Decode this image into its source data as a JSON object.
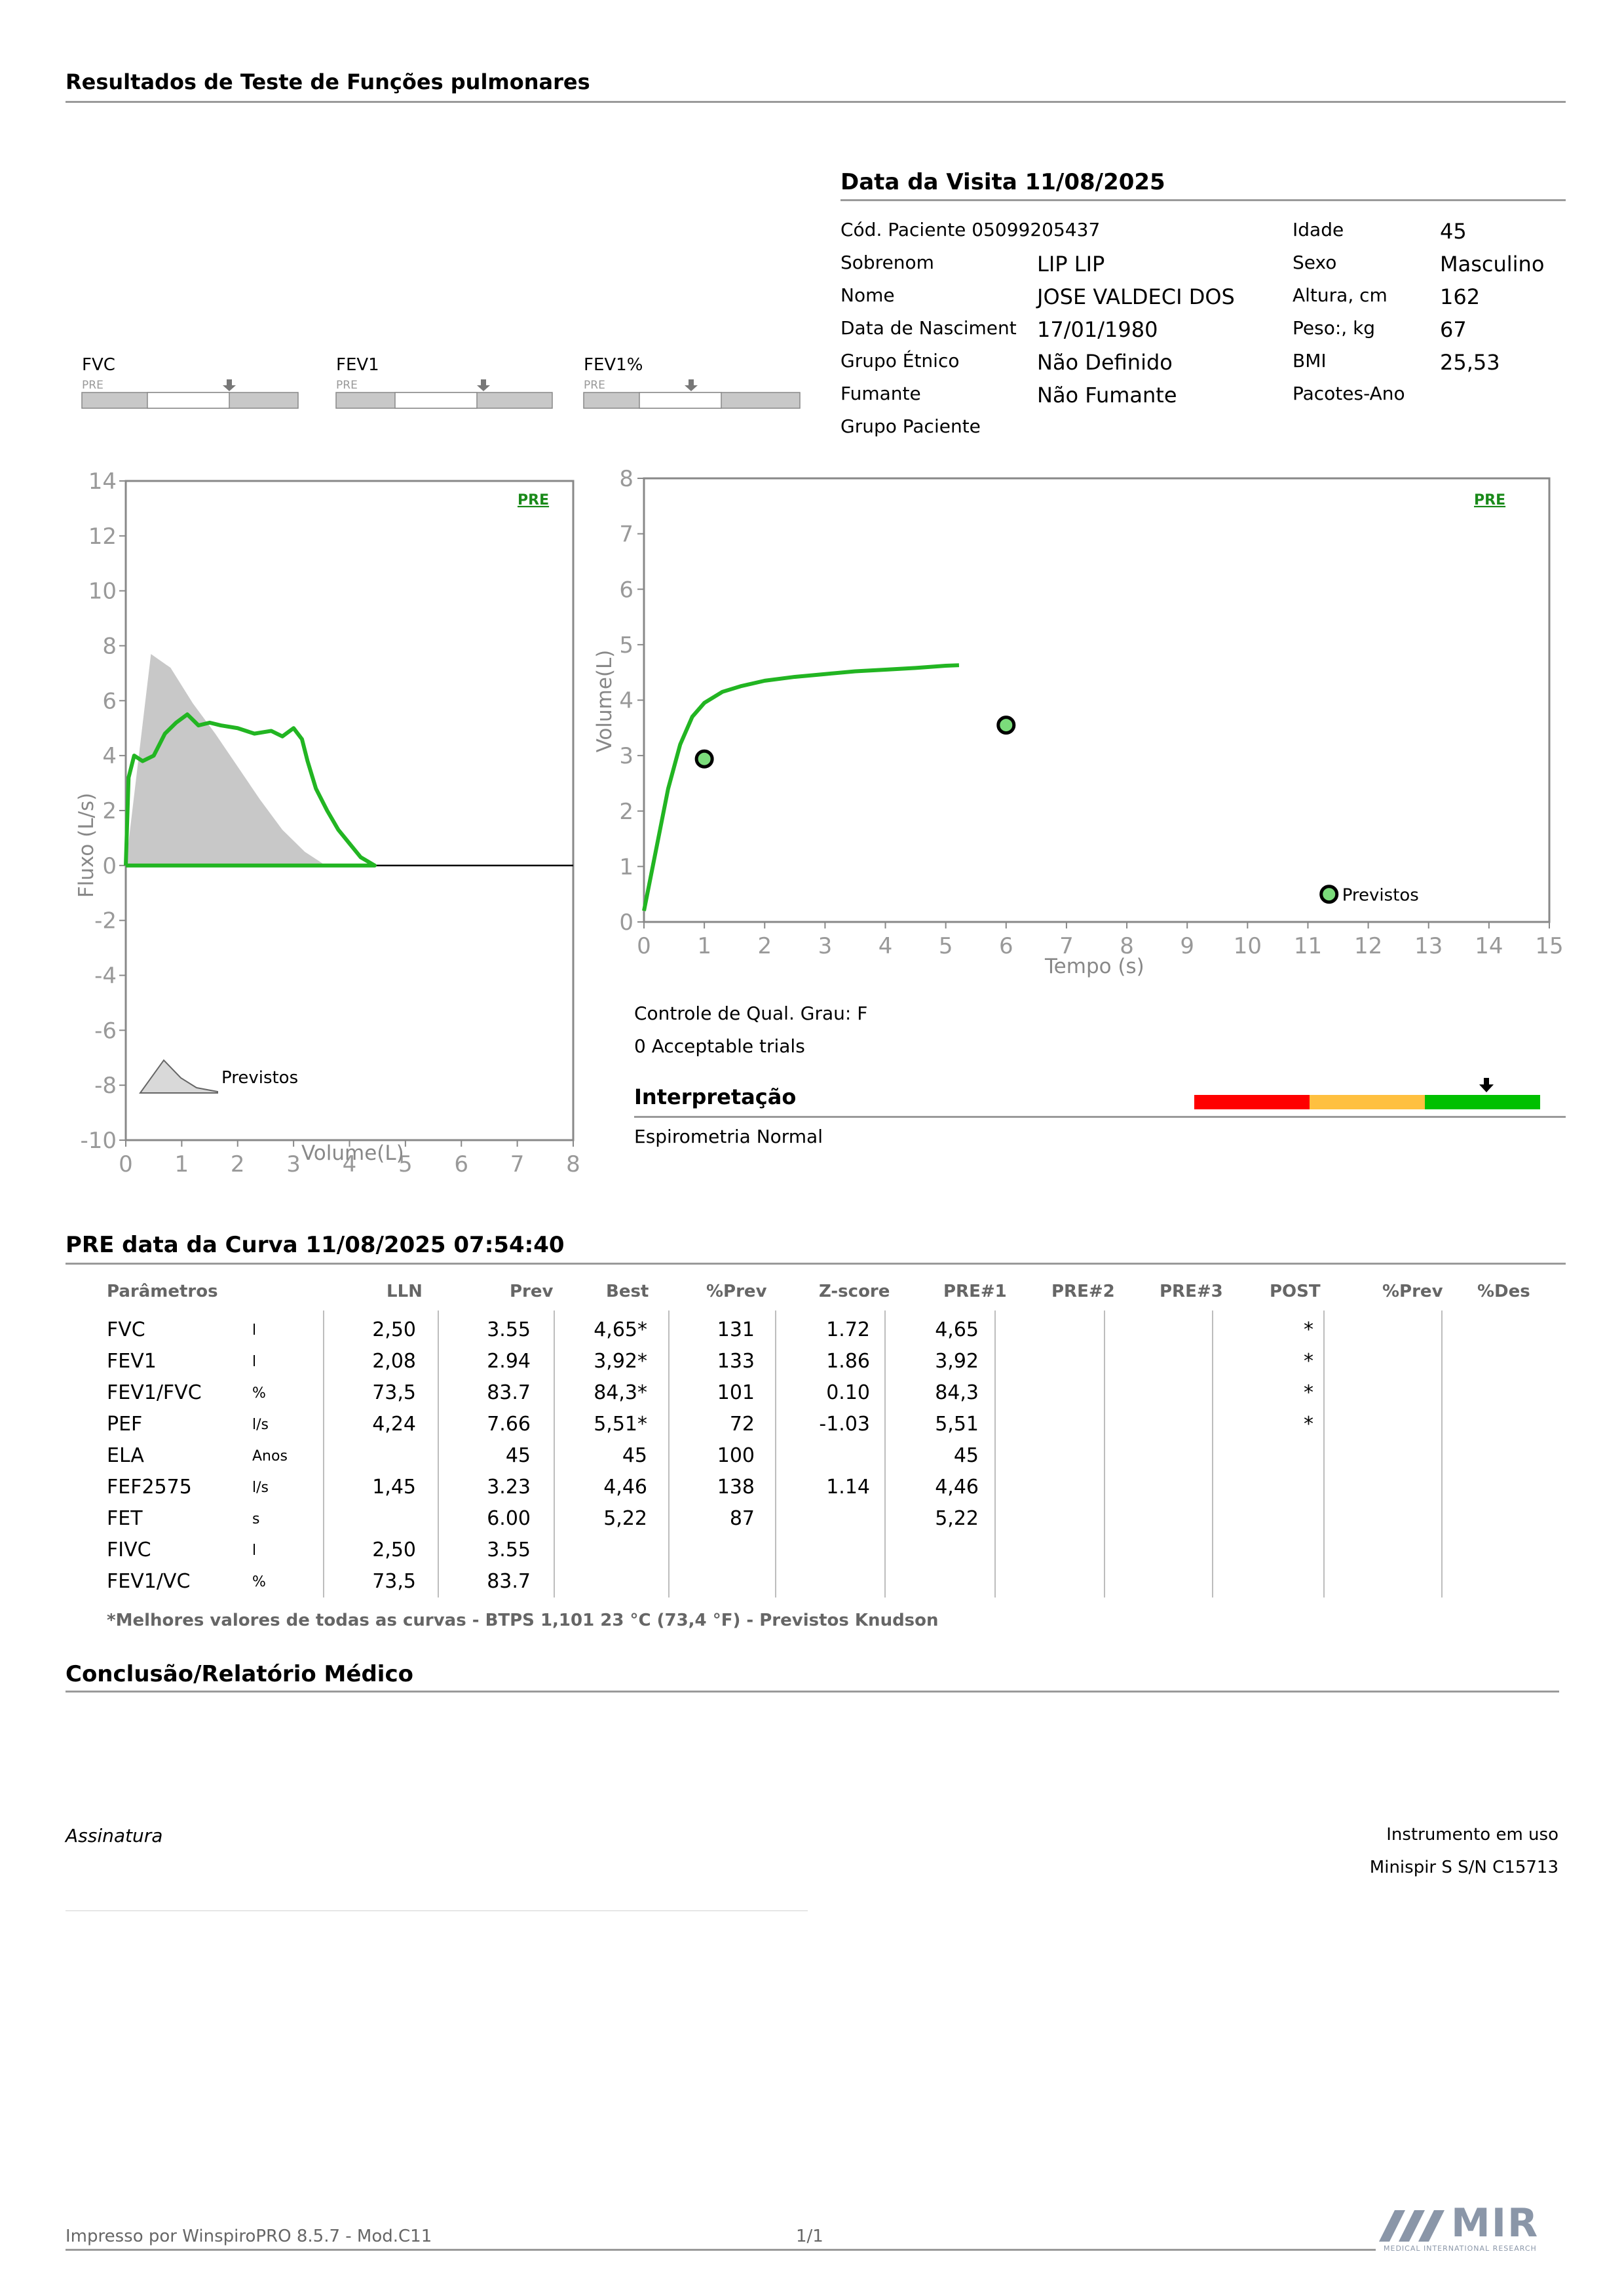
{
  "report": {
    "title": "Resultados de Teste de Funções pulmonares",
    "visit_title": "Data da Visita 11/08/2025"
  },
  "patient": {
    "code_label": "Cód. Paciente 05099205437",
    "surname_label": "Sobrenom",
    "surname": "LIP LIP",
    "name_label": "Nome",
    "name": "JOSE VALDECI DOS",
    "dob_label": "Data de Nasciment",
    "dob": "17/01/1980",
    "ethnic_label": "Grupo Étnico",
    "ethnic": "Não Definido",
    "smoker_label": "Fumante",
    "smoker": "Não Fumante",
    "group_label": "Grupo Paciente",
    "age_label": "Idade",
    "age": "45",
    "sex_label": "Sexo",
    "sex": "Masculino",
    "height_label": "Altura, cm",
    "height": "162",
    "weight_label": "Peso:, kg",
    "weight": "67",
    "bmi_label": "BMI",
    "bmi": "25,53",
    "pack_label": "Pacotes-Ano"
  },
  "indicators": [
    {
      "label": "FVC",
      "sub": "PRE"
    },
    {
      "label": "FEV1",
      "sub": "PRE"
    },
    {
      "label": "FEV1%",
      "sub": "PRE"
    }
  ],
  "chart_data": [
    {
      "type": "line",
      "name": "flow-volume",
      "tag": "PRE",
      "xlabel": "Volume(L)",
      "ylabel": "Fluxo (L/s)",
      "xlim": [
        0,
        8
      ],
      "ylim": [
        -10,
        14
      ],
      "xticks": [
        "0",
        "1",
        "2",
        "3",
        "4",
        "5",
        "6",
        "7",
        "8"
      ],
      "yticks": [
        "14",
        "12",
        "10",
        "8",
        "6",
        "4",
        "2",
        "0",
        "-2",
        "-4",
        "-6",
        "-8",
        "-10"
      ],
      "predicted_legend": "Previstos",
      "predicted_area": {
        "x": [
          0,
          0.45,
          0.8,
          1.2,
          1.6,
          2.0,
          2.4,
          2.8,
          3.2,
          3.5,
          3.55
        ],
        "y": [
          0,
          7.7,
          7.2,
          5.9,
          4.8,
          3.6,
          2.4,
          1.3,
          0.5,
          0.1,
          0
        ]
      },
      "measured": {
        "x": [
          0,
          0.05,
          0.15,
          0.3,
          0.5,
          0.7,
          0.9,
          1.1,
          1.3,
          1.5,
          1.7,
          2.0,
          2.3,
          2.6,
          2.8,
          3.0,
          3.15,
          3.25,
          3.4,
          3.6,
          3.8,
          4.0,
          4.2,
          4.45
        ],
        "y": [
          0,
          3.2,
          4.0,
          3.8,
          4.0,
          4.8,
          5.2,
          5.5,
          5.1,
          5.2,
          5.1,
          5.0,
          4.8,
          4.9,
          4.7,
          5.0,
          4.6,
          3.8,
          2.8,
          2.0,
          1.3,
          0.8,
          0.3,
          0
        ]
      }
    },
    {
      "type": "line",
      "name": "volume-time",
      "tag": "PRE",
      "xlabel": "Tempo (s)",
      "ylabel": "Volume(L)",
      "xlim": [
        0,
        15
      ],
      "ylim": [
        0,
        8
      ],
      "xticks": [
        "0",
        "1",
        "2",
        "3",
        "4",
        "5",
        "6",
        "7",
        "8",
        "9",
        "10",
        "11",
        "12",
        "13",
        "14",
        "15"
      ],
      "yticks": [
        "8",
        "7",
        "6",
        "5",
        "4",
        "3",
        "2",
        "1",
        "0"
      ],
      "predicted_label": "Previstos",
      "predicted_points": [
        {
          "x": 1.0,
          "y": 2.94
        },
        {
          "x": 6.0,
          "y": 3.55
        },
        {
          "x": 11.35,
          "y": 0.5
        }
      ],
      "measured": {
        "x": [
          0,
          0.2,
          0.4,
          0.6,
          0.8,
          1.0,
          1.3,
          1.6,
          2.0,
          2.5,
          3.0,
          3.5,
          4.0,
          4.5,
          5.0,
          5.22
        ],
        "y": [
          0.2,
          1.3,
          2.4,
          3.2,
          3.7,
          3.95,
          4.15,
          4.25,
          4.35,
          4.42,
          4.47,
          4.52,
          4.55,
          4.58,
          4.62,
          4.63
        ]
      }
    }
  ],
  "quality": {
    "grade": "Controle de Qual. Grau: F",
    "trials": "0 Acceptable trials"
  },
  "interpretation": {
    "title": "Interpretação",
    "text": "Espirometria Normal",
    "scale_colors": [
      "#ff0000",
      "#ffc040",
      "#00c000"
    ]
  },
  "results": {
    "title": "PRE data da Curva 11/08/2025   07:54:40",
    "headers": [
      "Parâmetros",
      "",
      "LLN",
      "Prev",
      "Best",
      "%Prev",
      "Z-score",
      "PRE#1",
      "PRE#2",
      "PRE#3",
      "POST",
      "%Prev",
      "%Des"
    ],
    "rows": [
      [
        "FVC",
        "l",
        "2,50",
        "3.55",
        "4,65*",
        "131",
        "1.72",
        "4,65",
        "",
        "",
        "*",
        "",
        ""
      ],
      [
        "FEV1",
        "l",
        "2,08",
        "2.94",
        "3,92*",
        "133",
        "1.86",
        "3,92",
        "",
        "",
        "*",
        "",
        ""
      ],
      [
        "FEV1/FVC",
        "%",
        "73,5",
        "83.7",
        "84,3*",
        "101",
        "0.10",
        "84,3",
        "",
        "",
        "*",
        "",
        ""
      ],
      [
        "PEF",
        "l/s",
        "4,24",
        "7.66",
        "5,51*",
        "72",
        "-1.03",
        "5,51",
        "",
        "",
        "*",
        "",
        ""
      ],
      [
        "ELA",
        "Anos",
        "",
        "45",
        "45",
        "100",
        "",
        "45",
        "",
        "",
        "",
        "",
        ""
      ],
      [
        "FEF2575",
        "l/s",
        "1,45",
        "3.23",
        "4,46",
        "138",
        "1.14",
        "4,46",
        "",
        "",
        "",
        "",
        ""
      ],
      [
        "FET",
        "s",
        "",
        "6.00",
        "5,22",
        "87",
        "",
        "5,22",
        "",
        "",
        "",
        "",
        ""
      ],
      [
        "FIVC",
        "l",
        "2,50",
        "3.55",
        "",
        "",
        "",
        "",
        "",
        "",
        "",
        "",
        ""
      ],
      [
        "FEV1/VC",
        "%",
        "73,5",
        "83.7",
        "",
        "",
        "",
        "",
        "",
        "",
        "",
        "",
        ""
      ]
    ],
    "footnote": "*Melhores valores de todas as curvas - BTPS  1,101  23 °C  (73,4 °F) - Previstos Knudson"
  },
  "conclusion": {
    "title": "Conclusão/Relatório Médico"
  },
  "signature": {
    "label": "Assinatura",
    "instrument_label": "Instrumento em uso",
    "instrument": "Minispir S S/N C15713"
  },
  "footer": {
    "printed": "Impresso por WinspiroPRO  8.5.7 - Mod.C11",
    "page": "1/1",
    "logo_text": "MIR",
    "logo_sub": "MEDICAL INTERNATIONAL RESEARCH"
  }
}
